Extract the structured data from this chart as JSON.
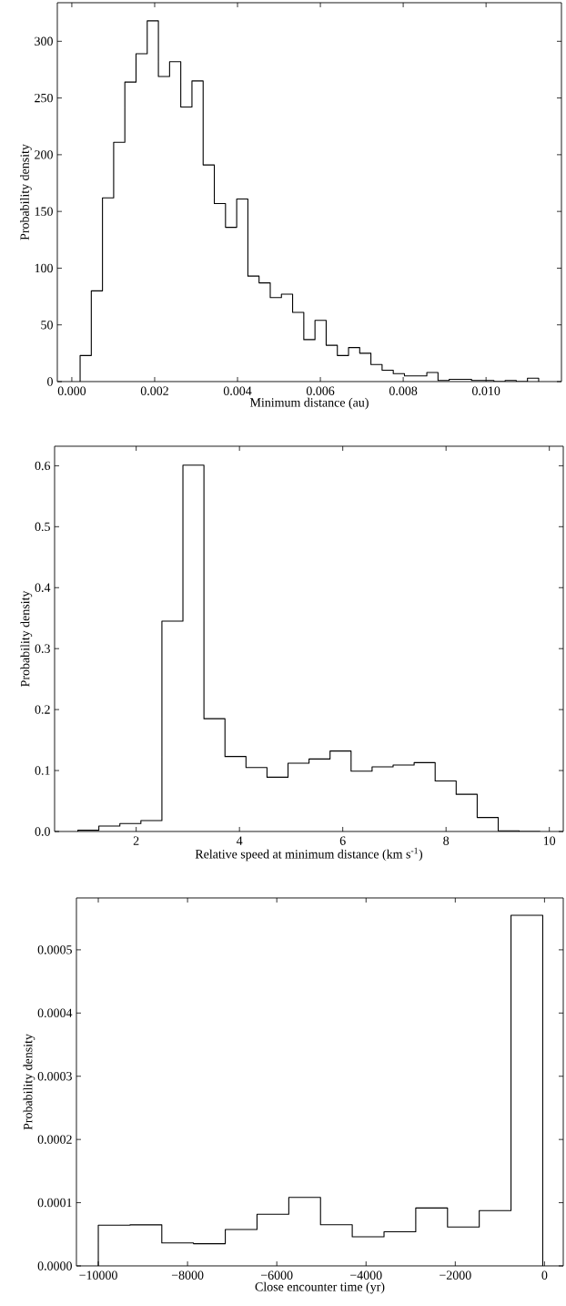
{
  "chart_data": [
    {
      "type": "histogram",
      "xlabel": "Minimum distance (au)",
      "ylabel": "Probability density",
      "bins": [
        0.0002,
        0.00047,
        0.00074,
        0.00101,
        0.00128,
        0.00155,
        0.00182,
        0.00209,
        0.00236,
        0.00263,
        0.0029,
        0.00317,
        0.00344,
        0.00371,
        0.00398,
        0.00425,
        0.00452,
        0.00479,
        0.00506,
        0.00533,
        0.0056,
        0.00587,
        0.00614,
        0.00641,
        0.00668,
        0.00695,
        0.00722,
        0.00749,
        0.00776,
        0.00803,
        0.0083,
        0.00857,
        0.00884,
        0.00911,
        0.00938,
        0.00965,
        0.00992,
        0.01019,
        0.01046,
        0.01073,
        0.011,
        0.01127
      ],
      "values": [
        23,
        80,
        162,
        211,
        264,
        289,
        318,
        269,
        282,
        242,
        265,
        191,
        157,
        136,
        161,
        93,
        87,
        74,
        77,
        61,
        37,
        54,
        32,
        23,
        30,
        25,
        15,
        10,
        7,
        5,
        5,
        8,
        1,
        2,
        2,
        1,
        1,
        0,
        1,
        0,
        3
      ],
      "color": "#000000",
      "xlim": [
        -0.00035,
        0.01182
      ],
      "ylim": [
        0,
        334
      ],
      "xticks": [
        {
          "value": 0,
          "label": "0.000"
        },
        {
          "value": 0.002,
          "label": "0.002"
        },
        {
          "value": 0.004,
          "label": "0.004"
        },
        {
          "value": 0.006,
          "label": "0.006"
        },
        {
          "value": 0.008,
          "label": "0.008"
        },
        {
          "value": 0.01,
          "label": "0.010"
        }
      ],
      "yticks": [
        0,
        50,
        100,
        150,
        200,
        250,
        300
      ]
    },
    {
      "type": "histogram",
      "xlabel": "Relative speed at minimum distance (km s$^{-1}$)",
      "ylabel": "Probability density",
      "bins": [
        0.87,
        1.277,
        1.684,
        2.091,
        2.498,
        2.905,
        3.312,
        3.719,
        4.126,
        4.533,
        4.94,
        5.347,
        5.754,
        6.161,
        6.568,
        6.975,
        7.382,
        7.789,
        8.196,
        8.603,
        9.01,
        9.417,
        9.824
      ],
      "values": [
        0.002,
        0.009,
        0.013,
        0.018,
        0.345,
        0.601,
        0.185,
        0.123,
        0.105,
        0.089,
        0.112,
        0.119,
        0.132,
        0.099,
        0.106,
        0.109,
        0.113,
        0.083,
        0.061,
        0.023,
        0.001,
        0
      ],
      "color": "#000000",
      "xlim": [
        0.42,
        10.27
      ],
      "ylim": [
        0,
        0.632
      ],
      "xticks": [
        2,
        4,
        6,
        8,
        10
      ],
      "yticks": [
        {
          "value": 0,
          "label": "0.0"
        },
        0.1,
        0.2,
        0.3,
        0.4,
        0.5,
        0.6
      ]
    },
    {
      "type": "histogram",
      "xlabel": "Close encounter time (yr)",
      "ylabel": "Probability density",
      "bins": [
        -10000,
        -9289,
        -8577,
        -7866,
        -7154,
        -6443,
        -5731,
        -5020,
        -4309,
        -3597,
        -2886,
        -2174,
        -1463,
        -751,
        -40
      ],
      "values": [
        6.45e-05,
        6.5e-05,
        3.63e-05,
        3.51e-05,
        5.76e-05,
        8.18e-05,
        0.0001083,
        6.51e-05,
        4.61e-05,
        5.41e-05,
        9.16e-05,
        6.16e-05,
        8.76e-05,
        0.0005547
      ],
      "color": "#000000",
      "xlim": [
        -10490,
        420
      ],
      "ylim": [
        0,
        0.000582
      ],
      "xticks": [
        {
          "value": -10000,
          "label": "−10000"
        },
        {
          "value": -8000,
          "label": "−8000"
        },
        {
          "value": -6000,
          "label": "−6000"
        },
        {
          "value": -4000,
          "label": "−4000"
        },
        {
          "value": -2000,
          "label": "−2000"
        },
        0
      ],
      "yticks": [
        {
          "value": 0,
          "label": "0.0000"
        },
        {
          "value": 0.0001,
          "label": "0.0001"
        },
        {
          "value": 0.0002,
          "label": "0.0002"
        },
        {
          "value": 0.0003,
          "label": "0.0003"
        },
        {
          "value": 0.0004,
          "label": "0.0004"
        },
        {
          "value": 0.0005,
          "label": "0.0005"
        }
      ]
    }
  ]
}
